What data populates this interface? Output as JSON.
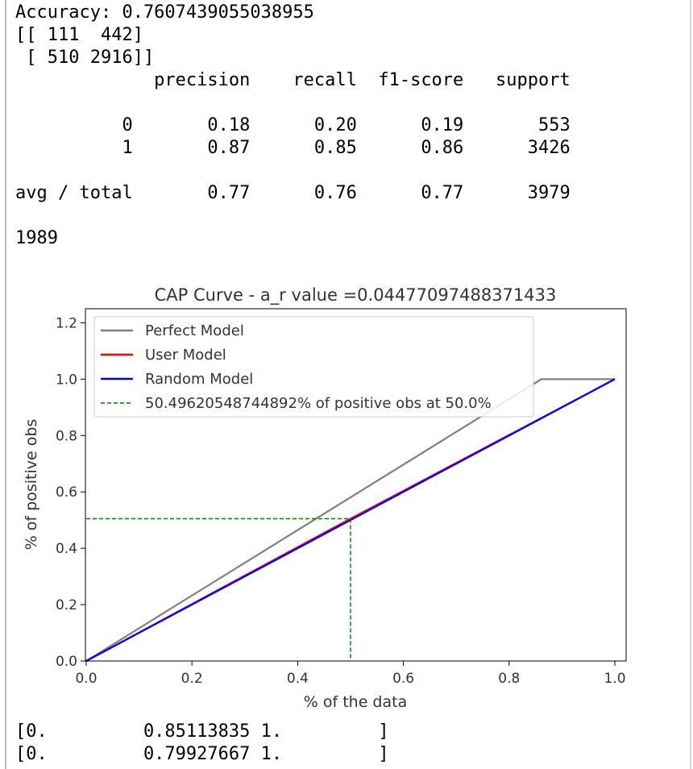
{
  "output": {
    "accuracy_line": "Accuracy: 0.7607439055038955",
    "matrix_line1": "[[ 111  442]",
    "matrix_line2": " [ 510 2916]]",
    "report_header": "             precision    recall  f1-score   support",
    "report_row0": "          0       0.18      0.20      0.19       553",
    "report_row1": "          1       0.87      0.85      0.86      3426",
    "report_avg": "avg / total       0.77      0.76      0.77      3979",
    "count_line": "1989",
    "array_line1": "[0.         0.85113835 1.         ]",
    "array_line2": "[0.         0.79927667 1.         ]"
  },
  "chart_data": {
    "type": "line",
    "title": "CAP Curve - a_r value =0.04477097488371433",
    "xlabel": "% of the data",
    "ylabel": "% of positive obs",
    "xlim": [
      0.0,
      1.0
    ],
    "ylim": [
      0.0,
      1.25
    ],
    "xticks": [
      "0.0",
      "0.2",
      "0.4",
      "0.6",
      "0.8",
      "1.0"
    ],
    "yticks": [
      "0.0",
      "0.2",
      "0.4",
      "0.6",
      "0.8",
      "1.0",
      "1.2"
    ],
    "grid": false,
    "legend_position": "upper-left",
    "series": [
      {
        "name": "Perfect Model",
        "color": "#808080",
        "style": "solid",
        "x": [
          0.0,
          0.861,
          1.0
        ],
        "y": [
          0.0,
          1.0,
          1.0
        ]
      },
      {
        "name": "User Model",
        "color": "#ff0000",
        "style": "solid",
        "x": [
          0.0,
          0.5,
          1.0
        ],
        "y": [
          0.0,
          0.505,
          1.0
        ]
      },
      {
        "name": "Random Model",
        "color": "#0000ff",
        "style": "solid",
        "x": [
          0.0,
          1.0
        ],
        "y": [
          0.0,
          1.0
        ]
      },
      {
        "name": "50.49620548744892% of positive obs at 50.0%",
        "color": "#008000",
        "style": "dashed",
        "x": [
          0.0,
          0.5,
          0.5
        ],
        "y": [
          0.505,
          0.505,
          0.0
        ]
      }
    ]
  }
}
